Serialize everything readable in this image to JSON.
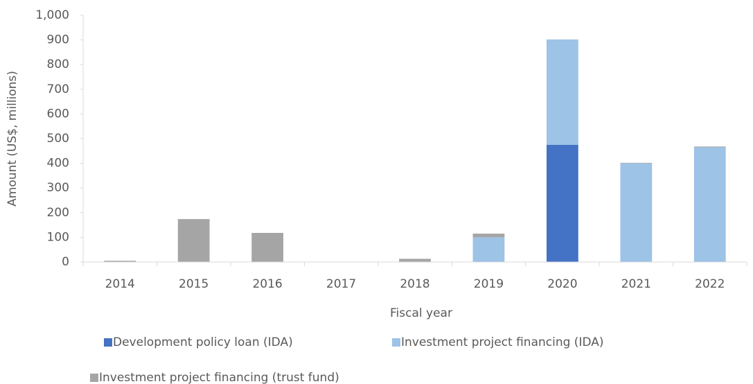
{
  "chart_data": {
    "type": "stacked_bar",
    "x_label": "Fiscal year",
    "y_label": "Amount (US$, millions)",
    "categories": [
      "2014",
      "2015",
      "2016",
      "2017",
      "2018",
      "2019",
      "2020",
      "2021",
      "2022"
    ],
    "series": [
      {
        "name": "Development policy loan (IDA)",
        "color": "#4472c4",
        "values": [
          0,
          0,
          0,
          0,
          0,
          0,
          475,
          0,
          0
        ]
      },
      {
        "name": "Investment project financing (IDA)",
        "color": "#9dc3e6",
        "values": [
          0,
          0,
          0,
          0,
          0,
          100,
          427,
          400,
          465
        ]
      },
      {
        "name": "Investment project financing (trust fund)",
        "color": "#a5a5a5",
        "values": [
          5,
          174,
          118,
          0,
          13,
          15,
          0,
          2,
          3
        ]
      }
    ],
    "ylim": [
      0,
      1000
    ],
    "yticks": [
      0,
      100,
      200,
      300,
      400,
      500,
      600,
      700,
      800,
      900,
      {
        "value": 1000,
        "label": "1,000"
      }
    ],
    "grid": false
  }
}
